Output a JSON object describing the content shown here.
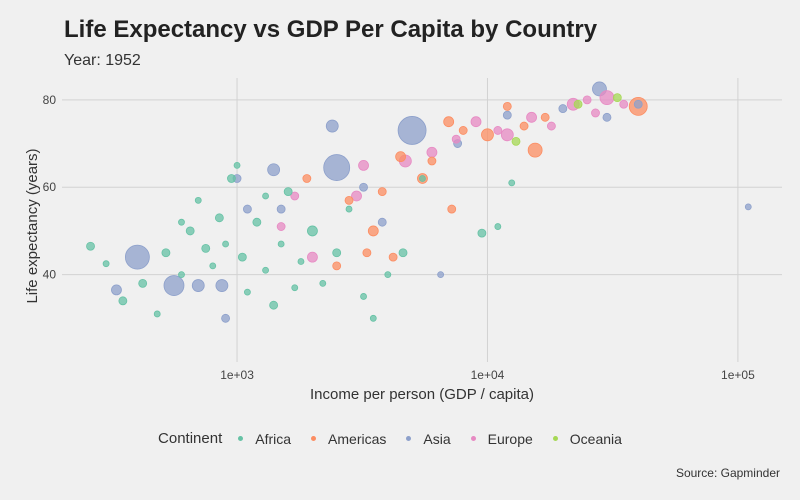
{
  "chart_data": {
    "type": "scatter",
    "title": "Life Expectancy vs GDP Per Capita by Country",
    "subtitle": "Year: 1952",
    "xlabel": "Income per person (GDP / capita)",
    "ylabel": "Life expectancy (years)",
    "caption": "Source: Gapminder",
    "x_scale": "log10",
    "xlim": [
      200,
      150000
    ],
    "ylim": [
      20,
      85
    ],
    "x_ticks": [
      {
        "value": 1000,
        "label": "1e+03"
      },
      {
        "value": 10000,
        "label": "1e+04"
      },
      {
        "value": 100000,
        "label": "1e+05"
      }
    ],
    "y_ticks": [
      {
        "value": 40,
        "label": "40"
      },
      {
        "value": 60,
        "label": "60"
      },
      {
        "value": 80,
        "label": "80"
      }
    ],
    "grid": true,
    "legend_position": "bottom",
    "legend_title": "Continent",
    "continents": [
      {
        "name": "Africa",
        "color": "#66c2a5"
      },
      {
        "name": "Americas",
        "color": "#fc8d62"
      },
      {
        "name": "Asia",
        "color": "#8da0cb"
      },
      {
        "name": "Europe",
        "color": "#e78ac3"
      },
      {
        "name": "Oceania",
        "color": "#a6d854"
      }
    ],
    "points": [
      {
        "continent": "Asia",
        "x": 400,
        "y": 44,
        "size": 12
      },
      {
        "continent": "Asia",
        "x": 560,
        "y": 37.5,
        "size": 10
      },
      {
        "continent": "Asia",
        "x": 2500,
        "y": 64.5,
        "size": 13
      },
      {
        "continent": "Asia",
        "x": 5000,
        "y": 73,
        "size": 14
      },
      {
        "continent": "Asia",
        "x": 2400,
        "y": 74,
        "size": 6
      },
      {
        "continent": "Asia",
        "x": 1400,
        "y": 64,
        "size": 6
      },
      {
        "continent": "Asia",
        "x": 28000,
        "y": 82.5,
        "size": 7
      },
      {
        "continent": "Asia",
        "x": 870,
        "y": 37.5,
        "size": 6
      },
      {
        "continent": "Asia",
        "x": 700,
        "y": 37.5,
        "size": 6
      },
      {
        "continent": "Asia",
        "x": 330,
        "y": 36.5,
        "size": 5
      },
      {
        "continent": "Asia",
        "x": 6500,
        "y": 40,
        "size": 3
      },
      {
        "continent": "Asia",
        "x": 110000,
        "y": 55.5,
        "size": 3
      },
      {
        "continent": "Asia",
        "x": 30000,
        "y": 76,
        "size": 4
      },
      {
        "continent": "Asia",
        "x": 20000,
        "y": 78,
        "size": 4
      },
      {
        "continent": "Asia",
        "x": 1000,
        "y": 62,
        "size": 4
      },
      {
        "continent": "Asia",
        "x": 1500,
        "y": 55,
        "size": 4
      },
      {
        "continent": "Asia",
        "x": 3200,
        "y": 60,
        "size": 4
      },
      {
        "continent": "Asia",
        "x": 900,
        "y": 30,
        "size": 4
      },
      {
        "continent": "Asia",
        "x": 1100,
        "y": 55,
        "size": 4
      },
      {
        "continent": "Asia",
        "x": 3800,
        "y": 52,
        "size": 4
      },
      {
        "continent": "Asia",
        "x": 7600,
        "y": 70,
        "size": 4
      },
      {
        "continent": "Asia",
        "x": 12000,
        "y": 76.5,
        "size": 4
      },
      {
        "continent": "Asia",
        "x": 40000,
        "y": 79,
        "size": 4
      },
      {
        "continent": "Americas",
        "x": 40000,
        "y": 78.5,
        "size": 9
      },
      {
        "continent": "Americas",
        "x": 10000,
        "y": 72,
        "size": 6
      },
      {
        "continent": "Americas",
        "x": 7000,
        "y": 75,
        "size": 5
      },
      {
        "continent": "Americas",
        "x": 15500,
        "y": 68.5,
        "size": 7
      },
      {
        "continent": "Americas",
        "x": 5500,
        "y": 62,
        "size": 5
      },
      {
        "continent": "Americas",
        "x": 7200,
        "y": 55,
        "size": 4
      },
      {
        "continent": "Americas",
        "x": 3500,
        "y": 50,
        "size": 5
      },
      {
        "continent": "Americas",
        "x": 3300,
        "y": 45,
        "size": 4
      },
      {
        "continent": "Americas",
        "x": 2500,
        "y": 42,
        "size": 4
      },
      {
        "continent": "Americas",
        "x": 4200,
        "y": 44,
        "size": 4
      },
      {
        "continent": "Americas",
        "x": 4500,
        "y": 67,
        "size": 5
      },
      {
        "continent": "Americas",
        "x": 8000,
        "y": 73,
        "size": 4
      },
      {
        "continent": "Americas",
        "x": 12000,
        "y": 78.5,
        "size": 4
      },
      {
        "continent": "Americas",
        "x": 14000,
        "y": 74,
        "size": 4
      },
      {
        "continent": "Americas",
        "x": 2800,
        "y": 57,
        "size": 4
      },
      {
        "continent": "Americas",
        "x": 6000,
        "y": 66,
        "size": 4
      },
      {
        "continent": "Americas",
        "x": 17000,
        "y": 76,
        "size": 4
      },
      {
        "continent": "Americas",
        "x": 1900,
        "y": 62,
        "size": 4
      },
      {
        "continent": "Americas",
        "x": 3800,
        "y": 59,
        "size": 4
      },
      {
        "continent": "Europe",
        "x": 30000,
        "y": 80.5,
        "size": 7
      },
      {
        "continent": "Europe",
        "x": 22000,
        "y": 79,
        "size": 6
      },
      {
        "continent": "Europe",
        "x": 12000,
        "y": 72,
        "size": 6
      },
      {
        "continent": "Europe",
        "x": 9000,
        "y": 75,
        "size": 5
      },
      {
        "continent": "Europe",
        "x": 6000,
        "y": 68,
        "size": 5
      },
      {
        "continent": "Europe",
        "x": 4700,
        "y": 66,
        "size": 6
      },
      {
        "continent": "Europe",
        "x": 3200,
        "y": 65,
        "size": 5
      },
      {
        "continent": "Europe",
        "x": 3000,
        "y": 58,
        "size": 5
      },
      {
        "continent": "Europe",
        "x": 1700,
        "y": 58,
        "size": 4
      },
      {
        "continent": "Europe",
        "x": 2000,
        "y": 44,
        "size": 5
      },
      {
        "continent": "Europe",
        "x": 15000,
        "y": 76,
        "size": 5
      },
      {
        "continent": "Europe",
        "x": 25000,
        "y": 80,
        "size": 4
      },
      {
        "continent": "Europe",
        "x": 35000,
        "y": 79,
        "size": 4
      },
      {
        "continent": "Europe",
        "x": 18000,
        "y": 74,
        "size": 4
      },
      {
        "continent": "Europe",
        "x": 7500,
        "y": 71,
        "size": 4
      },
      {
        "continent": "Europe",
        "x": 27000,
        "y": 77,
        "size": 4
      },
      {
        "continent": "Europe",
        "x": 11000,
        "y": 73,
        "size": 4
      },
      {
        "continent": "Europe",
        "x": 1500,
        "y": 51,
        "size": 4
      },
      {
        "continent": "Oceania",
        "x": 33000,
        "y": 80.5,
        "size": 4
      },
      {
        "continent": "Oceania",
        "x": 23000,
        "y": 79,
        "size": 4
      },
      {
        "continent": "Oceania",
        "x": 13000,
        "y": 70.5,
        "size": 4
      },
      {
        "continent": "Africa",
        "x": 260,
        "y": 46.5,
        "size": 4
      },
      {
        "continent": "Africa",
        "x": 300,
        "y": 42.5,
        "size": 3
      },
      {
        "continent": "Africa",
        "x": 350,
        "y": 34,
        "size": 4
      },
      {
        "continent": "Africa",
        "x": 420,
        "y": 38,
        "size": 4
      },
      {
        "continent": "Africa",
        "x": 480,
        "y": 31,
        "size": 3
      },
      {
        "continent": "Africa",
        "x": 520,
        "y": 45,
        "size": 4
      },
      {
        "continent": "Africa",
        "x": 600,
        "y": 40,
        "size": 3
      },
      {
        "continent": "Africa",
        "x": 650,
        "y": 50,
        "size": 4
      },
      {
        "continent": "Africa",
        "x": 700,
        "y": 57,
        "size": 3
      },
      {
        "continent": "Africa",
        "x": 750,
        "y": 46,
        "size": 4
      },
      {
        "continent": "Africa",
        "x": 800,
        "y": 42,
        "size": 3
      },
      {
        "continent": "Africa",
        "x": 850,
        "y": 53,
        "size": 4
      },
      {
        "continent": "Africa",
        "x": 900,
        "y": 47,
        "size": 3
      },
      {
        "continent": "Africa",
        "x": 950,
        "y": 62,
        "size": 4
      },
      {
        "continent": "Africa",
        "x": 1000,
        "y": 65,
        "size": 3
      },
      {
        "continent": "Africa",
        "x": 1050,
        "y": 44,
        "size": 4
      },
      {
        "continent": "Africa",
        "x": 1100,
        "y": 36,
        "size": 3
      },
      {
        "continent": "Africa",
        "x": 1200,
        "y": 52,
        "size": 4
      },
      {
        "continent": "Africa",
        "x": 1300,
        "y": 41,
        "size": 3
      },
      {
        "continent": "Africa",
        "x": 1400,
        "y": 33,
        "size": 4
      },
      {
        "continent": "Africa",
        "x": 1500,
        "y": 47,
        "size": 3
      },
      {
        "continent": "Africa",
        "x": 1600,
        "y": 59,
        "size": 4
      },
      {
        "continent": "Africa",
        "x": 1800,
        "y": 43,
        "size": 3
      },
      {
        "continent": "Africa",
        "x": 2000,
        "y": 50,
        "size": 5
      },
      {
        "continent": "Africa",
        "x": 2200,
        "y": 38,
        "size": 3
      },
      {
        "continent": "Africa",
        "x": 2500,
        "y": 45,
        "size": 4
      },
      {
        "continent": "Africa",
        "x": 2800,
        "y": 55,
        "size": 3
      },
      {
        "continent": "Africa",
        "x": 3200,
        "y": 35,
        "size": 3
      },
      {
        "continent": "Africa",
        "x": 3500,
        "y": 30,
        "size": 3
      },
      {
        "continent": "Africa",
        "x": 4000,
        "y": 40,
        "size": 3
      },
      {
        "continent": "Africa",
        "x": 4600,
        "y": 45,
        "size": 4
      },
      {
        "continent": "Africa",
        "x": 5500,
        "y": 62,
        "size": 3
      },
      {
        "continent": "Africa",
        "x": 9500,
        "y": 49.5,
        "size": 4
      },
      {
        "continent": "Africa",
        "x": 11000,
        "y": 51,
        "size": 3
      },
      {
        "continent": "Africa",
        "x": 12500,
        "y": 61,
        "size": 3
      },
      {
        "continent": "Africa",
        "x": 600,
        "y": 52,
        "size": 3
      },
      {
        "continent": "Africa",
        "x": 1300,
        "y": 58,
        "size": 3
      },
      {
        "continent": "Africa",
        "x": 1700,
        "y": 37,
        "size": 3
      }
    ]
  }
}
